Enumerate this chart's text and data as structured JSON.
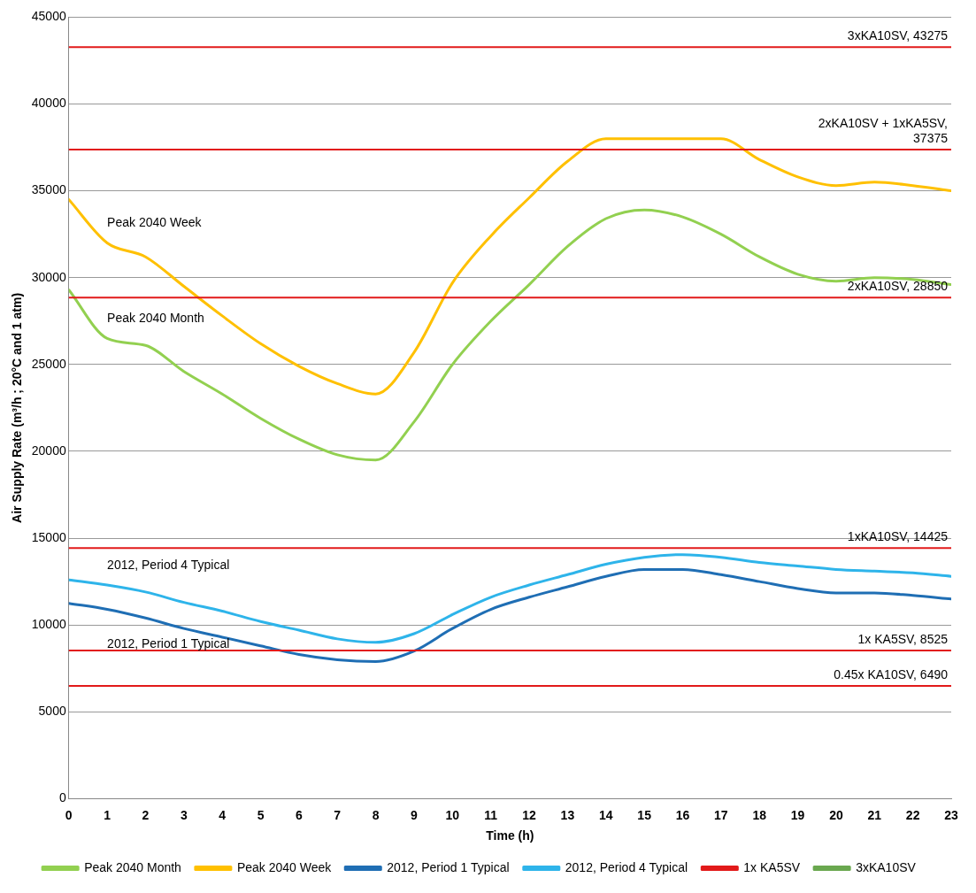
{
  "chart_data": {
    "type": "line",
    "xlabel": "Time (h)",
    "ylabel": "Air Supply Rate (m³/h ; 20°C and 1 atm)",
    "x": [
      0,
      1,
      2,
      3,
      4,
      5,
      6,
      7,
      8,
      9,
      10,
      11,
      12,
      13,
      14,
      15,
      16,
      17,
      18,
      19,
      20,
      21,
      22,
      23
    ],
    "xlim": [
      0,
      23
    ],
    "xticks": [
      0,
      1,
      2,
      3,
      4,
      5,
      6,
      7,
      8,
      9,
      10,
      11,
      12,
      13,
      14,
      15,
      16,
      17,
      18,
      19,
      20,
      21,
      22,
      23
    ],
    "ylim": [
      0,
      45000
    ],
    "yticks": [
      0,
      5000,
      10000,
      15000,
      20000,
      25000,
      30000,
      35000,
      40000,
      45000
    ],
    "grid": "y",
    "legend": "bottom",
    "marker": "none",
    "line_style": "solid",
    "series": [
      {
        "name": "Peak 2040 Month",
        "color": "#92d050",
        "values": [
          29300,
          26500,
          26100,
          24600,
          23300,
          21900,
          20700,
          19800,
          19500,
          21700,
          25000,
          27500,
          29600,
          31800,
          33400,
          33900,
          33500,
          32500,
          31200,
          30200,
          29800,
          30000,
          29900,
          29600
        ]
      },
      {
        "name": "Peak 2040 Week",
        "color": "#ffc000",
        "values": [
          34500,
          32000,
          31200,
          29500,
          27800,
          26200,
          24900,
          23900,
          23300,
          25700,
          29700,
          32400,
          34600,
          36700,
          38000,
          38000,
          38000,
          38000,
          36800,
          35800,
          35300,
          35500,
          35300,
          35000
        ]
      },
      {
        "name": "2012, Period 1 Typical",
        "color": "#1f6eb4",
        "values": [
          11250,
          10900,
          10400,
          9800,
          9300,
          8800,
          8300,
          8000,
          7900,
          8500,
          9800,
          10900,
          11600,
          12200,
          12800,
          13200,
          13200,
          12900,
          12500,
          12100,
          11850,
          11850,
          11700,
          11500
        ]
      },
      {
        "name": "2012, Period 4 Typical",
        "color": "#2eb4ea",
        "values": [
          12600,
          12300,
          11900,
          11300,
          10800,
          10200,
          9700,
          9200,
          9000,
          9500,
          10600,
          11600,
          12300,
          12900,
          13500,
          13900,
          14050,
          13900,
          13600,
          13400,
          13200,
          13100,
          13000,
          12800
        ]
      },
      {
        "name": "1x KA5SV",
        "color": "#e21a1a",
        "values": [
          null,
          null,
          null,
          null,
          null,
          null,
          null,
          null,
          null,
          null,
          null,
          null,
          null,
          null,
          null,
          null,
          null,
          null,
          null,
          null,
          null,
          null,
          null,
          null
        ]
      },
      {
        "name": "3xKA10SV",
        "color": "#6aa84f",
        "values": [
          null,
          null,
          null,
          null,
          null,
          null,
          null,
          null,
          null,
          null,
          null,
          null,
          null,
          null,
          null,
          null,
          null,
          null,
          null,
          null,
          null,
          null,
          null,
          null
        ]
      }
    ],
    "ref_lines": [
      {
        "axis": "y",
        "value": 43275,
        "label": "3xKA10SV, 43275",
        "color": "#e21a1a"
      },
      {
        "axis": "y",
        "value": 37375,
        "label": "2xKA10SV + 1xKA5SV, 37375",
        "color": "#e21a1a"
      },
      {
        "axis": "y",
        "value": 28850,
        "label": "2xKA10SV, 28850",
        "color": "#e21a1a"
      },
      {
        "axis": "y",
        "value": 14425,
        "label": "1xKA10SV, 14425",
        "color": "#e21a1a"
      },
      {
        "axis": "y",
        "value": 8525,
        "label": "1x KA5SV, 8525",
        "color": "#e21a1a"
      },
      {
        "axis": "y",
        "value": 6490,
        "label": "0.45x KA10SV, 6490",
        "color": "#e21a1a"
      }
    ]
  }
}
